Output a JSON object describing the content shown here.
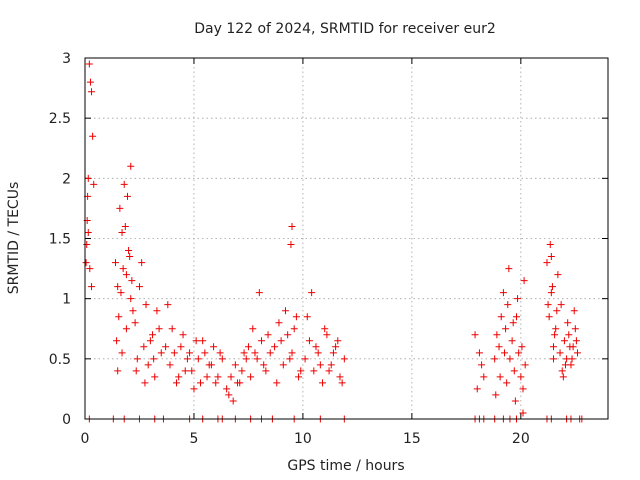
{
  "chart_data": {
    "type": "scatter",
    "title": "Day 122 of 2024, SRMTID for receiver eur2",
    "xlabel": "GPS time / hours",
    "ylabel": "SRMTID / TECUs",
    "xlim": [
      0,
      24
    ],
    "ylim": [
      0,
      3
    ],
    "xticks": [
      0,
      5,
      10,
      15,
      20
    ],
    "xtick_labels": [
      "0",
      "5",
      "10",
      "15",
      "20"
    ],
    "yticks": [
      0,
      0.5,
      1,
      1.5,
      2,
      2.5,
      3
    ],
    "ytick_labels": [
      "0",
      "0.5",
      "1",
      "1.5",
      "2",
      "2.5",
      "3"
    ],
    "grid": true,
    "marker": "+",
    "color": "#ee0000",
    "series": [
      {
        "name": "SRMTID",
        "x": [
          0.05,
          0.1,
          0.15,
          0.2,
          0.25,
          0.3,
          0.35,
          0.4,
          0.15,
          0.22,
          0.3,
          0.08,
          0.12,
          1.4,
          1.5,
          1.6,
          1.7,
          1.8,
          1.9,
          2.0,
          2.1,
          2.2,
          1.45,
          1.55,
          1.65,
          1.75,
          1.85,
          1.95,
          2.05,
          2.15,
          1.5,
          1.7,
          1.9,
          2.1,
          2.3,
          2.5,
          2.7,
          2.9,
          3.1,
          3.3,
          3.5,
          2.4,
          2.6,
          2.8,
          3.0,
          3.2,
          3.4,
          2.35,
          2.75,
          3.15,
          3.7,
          3.9,
          4.1,
          4.3,
          4.5,
          4.7,
          4.9,
          5.1,
          5.3,
          5.5,
          5.7,
          5.9,
          6.1,
          6.3,
          3.8,
          4.0,
          4.2,
          4.4,
          4.6,
          4.8,
          5.0,
          5.2,
          5.4,
          5.6,
          5.8,
          6.0,
          6.2,
          6.5,
          6.7,
          6.9,
          7.1,
          7.3,
          7.5,
          7.7,
          7.9,
          8.1,
          8.3,
          8.5,
          6.6,
          6.8,
          7.0,
          7.2,
          7.4,
          7.6,
          7.8,
          8.0,
          8.2,
          8.4,
          8.7,
          8.9,
          9.1,
          9.3,
          9.5,
          9.7,
          9.9,
          8.8,
          9.0,
          9.2,
          9.4,
          9.6,
          9.8,
          9.45,
          9.5,
          10.1,
          10.3,
          10.5,
          10.7,
          10.9,
          11.1,
          11.3,
          11.5,
          11.7,
          11.9,
          10.2,
          10.4,
          10.6,
          10.8,
          11.0,
          11.2,
          11.4,
          11.6,
          11.8,
          17.9,
          18.1,
          18.3,
          18.0,
          18.2,
          18.8,
          18.9,
          19.0,
          19.1,
          19.2,
          19.3,
          19.4,
          19.5,
          19.6,
          19.7,
          19.8,
          19.9,
          20.0,
          20.1,
          20.2,
          18.85,
          19.05,
          19.25,
          19.45,
          19.65,
          19.85,
          20.05,
          20.15,
          19.35,
          19.75,
          20.1,
          21.2,
          21.3,
          21.4,
          21.5,
          21.6,
          21.7,
          21.25,
          21.35,
          21.45,
          21.55,
          21.65,
          21.4,
          21.5,
          21.8,
          21.9,
          22.0,
          22.1,
          22.2,
          22.3,
          22.4,
          22.5,
          22.6,
          21.85,
          21.95,
          22.05,
          22.15,
          22.25,
          22.35,
          22.45,
          22.55,
          0.2,
          1.3,
          1.8,
          2.5,
          3.2,
          3.6,
          4.8,
          5.4,
          6.1,
          6.3,
          6.9,
          7.6,
          8.1,
          8.6,
          9.6,
          10.8,
          11.9,
          17.9,
          18.1,
          18.3,
          18.8,
          19.2,
          19.5,
          19.8,
          21.2,
          21.4,
          22.1,
          22.3,
          22.7,
          22.8
        ],
        "y": [
          1.3,
          1.65,
          2.0,
          2.95,
          2.8,
          2.72,
          2.35,
          1.95,
          1.55,
          1.25,
          1.1,
          1.45,
          1.85,
          1.3,
          1.1,
          1.75,
          1.55,
          1.95,
          1.2,
          1.4,
          2.1,
          0.9,
          0.65,
          0.85,
          1.05,
          1.25,
          1.6,
          1.85,
          1.35,
          1.15,
          0.4,
          0.55,
          0.75,
          1.0,
          0.8,
          1.1,
          0.6,
          0.45,
          0.7,
          0.9,
          0.55,
          0.5,
          1.3,
          0.95,
          0.65,
          0.35,
          0.75,
          0.4,
          0.3,
          0.5,
          0.6,
          0.45,
          0.55,
          0.35,
          0.7,
          0.5,
          0.4,
          0.65,
          0.3,
          0.55,
          0.45,
          0.6,
          0.35,
          0.5,
          0.95,
          0.75,
          0.3,
          0.6,
          0.4,
          0.55,
          0.25,
          0.5,
          0.65,
          0.35,
          0.45,
          0.3,
          0.55,
          0.25,
          0.35,
          0.45,
          0.3,
          0.55,
          0.6,
          0.75,
          0.5,
          0.65,
          0.4,
          0.55,
          0.2,
          0.15,
          0.3,
          0.4,
          0.5,
          0.35,
          0.55,
          1.05,
          0.45,
          0.7,
          0.6,
          0.8,
          0.45,
          0.7,
          0.55,
          0.85,
          0.4,
          0.3,
          0.65,
          0.9,
          0.5,
          0.75,
          0.35,
          1.45,
          1.6,
          0.5,
          0.65,
          0.4,
          0.55,
          0.3,
          0.7,
          0.45,
          0.6,
          0.35,
          0.5,
          0.85,
          1.05,
          0.6,
          0.45,
          0.75,
          0.4,
          0.55,
          0.65,
          0.3,
          0.7,
          0.55,
          0.35,
          0.25,
          0.45,
          0.5,
          0.7,
          0.6,
          0.85,
          1.05,
          0.75,
          0.95,
          0.5,
          0.65,
          0.4,
          0.85,
          0.55,
          0.35,
          0.25,
          0.45,
          0.2,
          0.35,
          0.55,
          1.25,
          0.8,
          1.0,
          0.6,
          1.15,
          0.3,
          0.15,
          0.05,
          1.3,
          0.85,
          1.05,
          0.6,
          0.75,
          1.2,
          0.95,
          1.45,
          1.1,
          0.7,
          0.9,
          1.35,
          0.5,
          0.55,
          0.4,
          0.65,
          0.5,
          0.7,
          0.45,
          0.6,
          0.75,
          0.55,
          0.95,
          0.35,
          0.45,
          0.8,
          0.6,
          0.5,
          0.9,
          0.65,
          0,
          0,
          0,
          0,
          0,
          0,
          0,
          0,
          0,
          0,
          0,
          0,
          0,
          0,
          0,
          0,
          0,
          0,
          0,
          0,
          0,
          0,
          0,
          0,
          0,
          0,
          0,
          0,
          0,
          0
        ]
      }
    ]
  }
}
